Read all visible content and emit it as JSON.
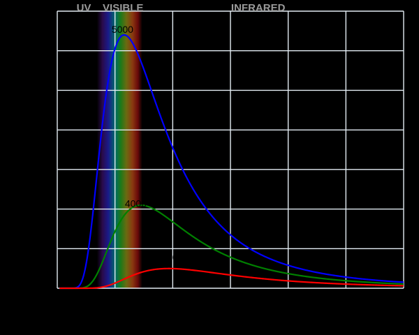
{
  "chart_data": {
    "type": "line",
    "title": "",
    "xlabel": "",
    "ylabel": "",
    "xlim": [
      0,
      3.0
    ],
    "ylim": [
      0,
      14
    ],
    "grid": true,
    "region_labels": [
      {
        "text": "UV",
        "x": 0.23
      },
      {
        "text": "VISIBLE",
        "x": 0.57
      },
      {
        "text": "INFRARED",
        "x": 1.74
      }
    ],
    "visible_band": [
      0.38,
      0.7
    ],
    "series": [
      {
        "name": "5000",
        "temperature": 5000,
        "color": "#0000ff",
        "label_at": [
          0.565,
          12.9
        ]
      },
      {
        "name": "4000",
        "temperature": 4000,
        "color": "#008000",
        "label_at": [
          0.68,
          4.1
        ]
      },
      {
        "name": "3000",
        "temperature": 3000,
        "color": "#ff0000",
        "label_at": [
          0.95,
          1.4
        ]
      }
    ]
  }
}
